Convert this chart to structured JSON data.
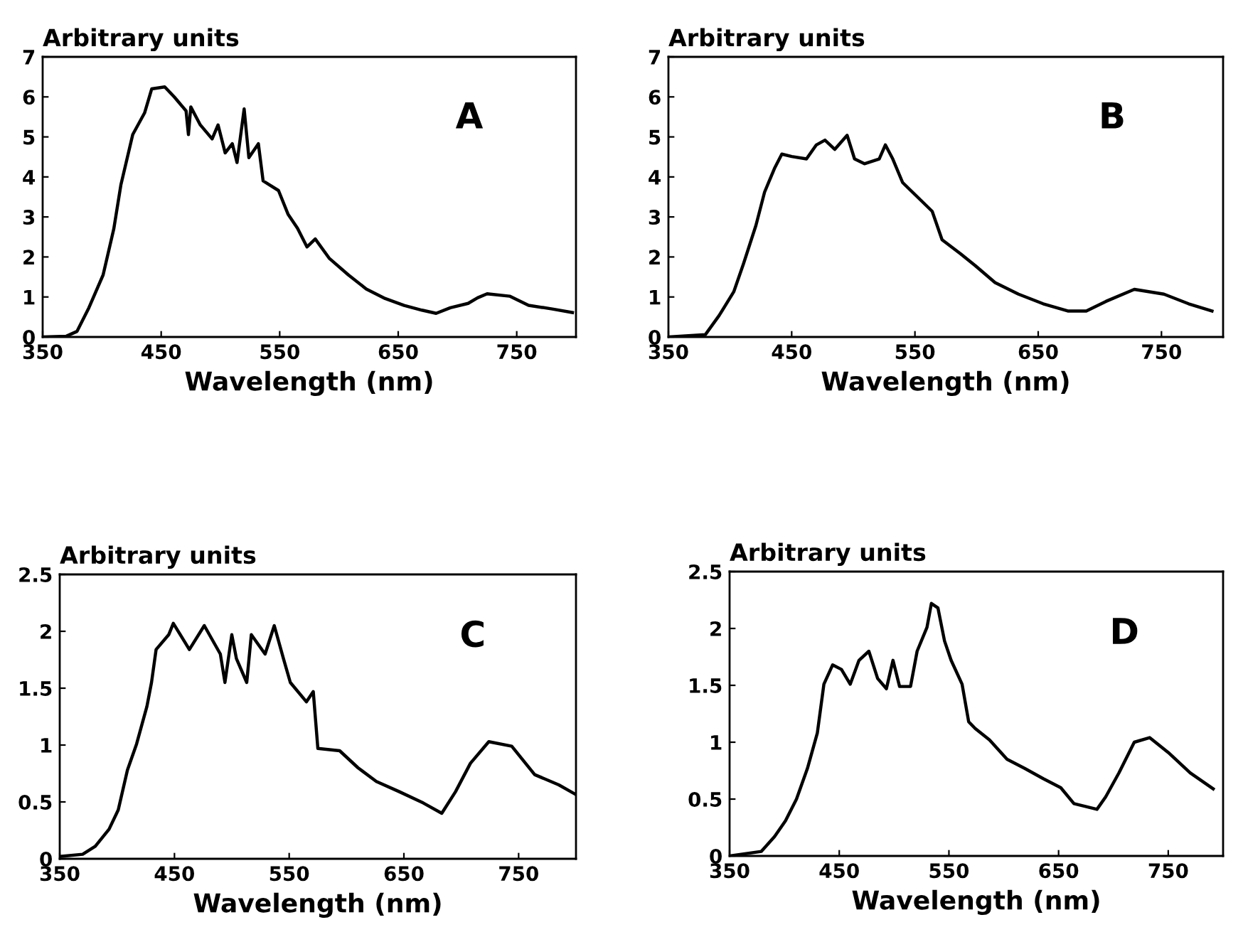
{
  "chart_data": [
    {
      "type": "line",
      "xlabel": "Wavelength (nm)",
      "ylabel": "Arbitrary units",
      "annotations": [
        "A"
      ],
      "xlim": [
        350,
        800
      ],
      "ylim": [
        0,
        7
      ],
      "xticks": [
        350,
        450,
        550,
        650,
        750
      ],
      "yticks": [
        0,
        1,
        2,
        3,
        4,
        5,
        6,
        7
      ],
      "series": [
        {
          "color": "#000000",
          "x": [
            350,
            370,
            379,
            389,
            401,
            410,
            416,
            426,
            436,
            442,
            453,
            461,
            471,
            473,
            475,
            483,
            493,
            498,
            504,
            510,
            514,
            520,
            524,
            532,
            536,
            549,
            557,
            565,
            573,
            580,
            592,
            608,
            623,
            639,
            655,
            670,
            682,
            694,
            709,
            717,
            725,
            744,
            760,
            780,
            797
          ],
          "values": [
            0,
            0.02,
            0.14,
            0.73,
            1.55,
            2.7,
            3.8,
            5.06,
            5.6,
            6.2,
            6.25,
            6.0,
            5.65,
            5.06,
            5.75,
            5.3,
            4.95,
            5.3,
            4.6,
            4.83,
            4.36,
            5.7,
            4.48,
            4.83,
            3.9,
            3.66,
            3.07,
            2.72,
            2.25,
            2.45,
            1.96,
            1.55,
            1.2,
            0.96,
            0.79,
            0.67,
            0.59,
            0.73,
            0.84,
            0.98,
            1.08,
            1.02,
            0.79,
            0.7,
            0.61
          ]
        }
      ]
    },
    {
      "type": "line",
      "xlabel": "Wavelength (nm)",
      "ylabel": "Arbitrary units",
      "annotations": [
        "B"
      ],
      "xlim": [
        350,
        800
      ],
      "ylim": [
        0,
        7
      ],
      "xticks": [
        350,
        450,
        550,
        650,
        750
      ],
      "yticks": [
        0,
        1,
        2,
        3,
        4,
        5,
        6,
        7
      ],
      "series": [
        {
          "color": "#000000",
          "x": [
            350,
            380,
            391,
            403,
            411,
            421,
            428,
            436,
            442,
            450,
            462,
            470,
            477,
            485,
            495,
            501,
            509,
            521,
            526,
            532,
            540,
            552,
            564,
            572,
            587,
            599,
            615,
            634,
            654,
            674,
            689,
            705,
            728,
            752,
            772,
            791
          ],
          "values": [
            0,
            0.06,
            0.53,
            1.13,
            1.84,
            2.79,
            3.62,
            4.21,
            4.57,
            4.51,
            4.45,
            4.8,
            4.92,
            4.69,
            5.04,
            4.45,
            4.33,
            4.45,
            4.8,
            4.45,
            3.86,
            3.5,
            3.14,
            2.43,
            2.08,
            1.78,
            1.36,
            1.07,
            0.83,
            0.65,
            0.65,
            0.89,
            1.19,
            1.07,
            0.83,
            0.65
          ]
        }
      ]
    },
    {
      "type": "line",
      "xlabel": "Wavelength (nm)",
      "ylabel": "Arbitrary units",
      "annotations": [
        "C"
      ],
      "xlim": [
        350,
        800
      ],
      "ylim": [
        0,
        2.5
      ],
      "xticks": [
        350,
        450,
        550,
        650,
        750
      ],
      "yticks": [
        0,
        0.5,
        1,
        1.5,
        2,
        2.5
      ],
      "series": [
        {
          "color": "#000000",
          "x": [
            350,
            370,
            381,
            393,
            401,
            409,
            417,
            426,
            430,
            434,
            445,
            449,
            463,
            476,
            490,
            494,
            500,
            504,
            513,
            517,
            529,
            537,
            545,
            551,
            565,
            571,
            575,
            594,
            610,
            626,
            646,
            667,
            683,
            695,
            708,
            724,
            744,
            764,
            785,
            799
          ],
          "values": [
            0.02,
            0.04,
            0.11,
            0.26,
            0.43,
            0.78,
            1.01,
            1.34,
            1.55,
            1.84,
            1.97,
            2.07,
            1.84,
            2.05,
            1.8,
            1.55,
            1.97,
            1.76,
            1.55,
            1.97,
            1.8,
            2.05,
            1.76,
            1.55,
            1.38,
            1.47,
            0.97,
            0.95,
            0.8,
            0.68,
            0.59,
            0.49,
            0.4,
            0.59,
            0.84,
            1.03,
            0.99,
            0.74,
            0.65,
            0.57
          ]
        }
      ]
    },
    {
      "type": "line",
      "xlabel": "Wavelength (nm)",
      "ylabel": "Arbitrary units",
      "annotations": [
        "D"
      ],
      "xlim": [
        350,
        800
      ],
      "ylim": [
        0,
        2.5
      ],
      "xticks": [
        350,
        450,
        550,
        650,
        750
      ],
      "yticks": [
        0,
        0.5,
        1,
        1.5,
        2,
        2.5
      ],
      "series": [
        {
          "color": "#000000",
          "x": [
            350,
            379,
            391,
            401,
            411,
            421,
            430,
            436,
            444,
            452,
            460,
            468,
            477,
            485,
            493,
            499,
            505,
            515,
            521,
            530,
            534,
            540,
            546,
            552,
            562,
            568,
            574,
            587,
            603,
            619,
            636,
            652,
            664,
            685,
            693,
            705,
            719,
            733,
            750,
            770,
            791
          ],
          "values": [
            0,
            0.04,
            0.17,
            0.31,
            0.5,
            0.77,
            1.08,
            1.51,
            1.68,
            1.64,
            1.51,
            1.72,
            1.8,
            1.56,
            1.47,
            1.72,
            1.49,
            1.49,
            1.8,
            2.01,
            2.22,
            2.18,
            1.89,
            1.72,
            1.51,
            1.18,
            1.12,
            1.02,
            0.85,
            0.77,
            0.68,
            0.6,
            0.46,
            0.41,
            0.52,
            0.73,
            1.0,
            1.04,
            0.91,
            0.73,
            0.59
          ]
        }
      ]
    }
  ]
}
